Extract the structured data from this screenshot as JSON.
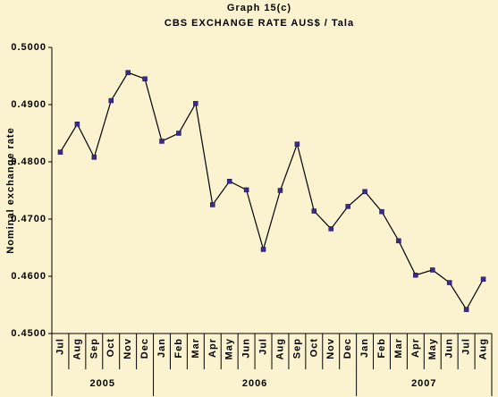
{
  "chart_data": {
    "type": "line",
    "title": "Graph 15(c)",
    "subtitle": "CBS EXCHANGE RATE AUS$ / Tala",
    "y_label": "Nominal exchange rate",
    "categories": [
      "Jul",
      "Aug",
      "Sep",
      "Oct",
      "Nov",
      "Dec",
      "Jan",
      "Feb",
      "Mar",
      "Apr",
      "May",
      "Jun",
      "Jul",
      "Aug",
      "Sep",
      "Oct",
      "Nov",
      "Dec",
      "Jan",
      "Feb",
      "Mar",
      "Apr",
      "May",
      "Jun",
      "Jul",
      "Aug"
    ],
    "groups": [
      {
        "label": "2005",
        "span": 6
      },
      {
        "label": "2006",
        "span": 12
      },
      {
        "label": "2007",
        "span": 8
      }
    ],
    "series": [
      {
        "name": "CBS EXCHANGE RATE AUS$ / Tala",
        "color": "#000000",
        "marker_color": "#3b2a8c",
        "values": [
          0.4817,
          0.4866,
          0.4808,
          0.4907,
          0.4956,
          0.4945,
          0.4836,
          0.485,
          0.4902,
          0.4725,
          0.4766,
          0.4751,
          0.4647,
          0.475,
          0.4831,
          0.4714,
          0.4683,
          0.4722,
          0.4748,
          0.4713,
          0.4662,
          0.4602,
          0.4611,
          0.4589,
          0.4542,
          0.4595
        ]
      }
    ],
    "ylim": [
      0.45,
      0.5
    ],
    "yticks": [
      {
        "value": 0.45,
        "label": "0.4500"
      },
      {
        "value": 0.46,
        "label": "0.4600"
      },
      {
        "value": 0.47,
        "label": "0.4700"
      },
      {
        "value": 0.48,
        "label": "0.4800"
      },
      {
        "value": 0.49,
        "label": "0.4900"
      },
      {
        "value": 0.5,
        "label": "0.5000"
      }
    ],
    "grid": false
  }
}
